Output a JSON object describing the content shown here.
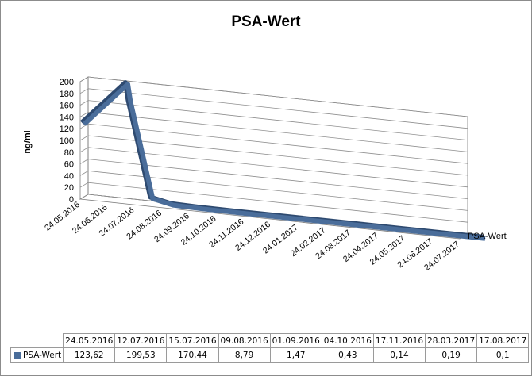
{
  "chart_data": {
    "type": "line",
    "style": "3d",
    "title": "PSA-Wert",
    "ylabel": "ng/ml",
    "ylim": [
      0,
      200
    ],
    "yticks": [
      "0",
      "20",
      "40",
      "60",
      "80",
      "100",
      "120",
      "140",
      "160",
      "180",
      "200"
    ],
    "xaxis_ticks": [
      "24.05.2016",
      "24.06.2016",
      "24.07.2016",
      "24.08.2016",
      "24.09.2016",
      "24.10.2016",
      "24.11.2016",
      "24.12.2016",
      "24.01.2017",
      "24.02.2017",
      "24.03.2017",
      "24.04.2017",
      "24.05.2017",
      "24.06.2017",
      "24.07.2017"
    ],
    "grid": true,
    "series_label": "PSA-Wert",
    "series": [
      {
        "name": "PSA-Wert",
        "color": "#4a6d9a",
        "x": [
          "24.05.2016",
          "12.07.2016",
          "15.07.2016",
          "09.08.2016",
          "01.09.2016",
          "04.10.2016",
          "17.11.2016",
          "28.03.2017",
          "17.08.2017"
        ],
        "values": [
          123.62,
          199.53,
          170.44,
          8.79,
          1.47,
          0.43,
          0.14,
          0.19,
          0.1
        ],
        "display_values": [
          "123,62",
          "199,53",
          "170,44",
          "8,79",
          "1,47",
          "0,43",
          "0,14",
          "0,19",
          "0,1"
        ]
      }
    ]
  }
}
